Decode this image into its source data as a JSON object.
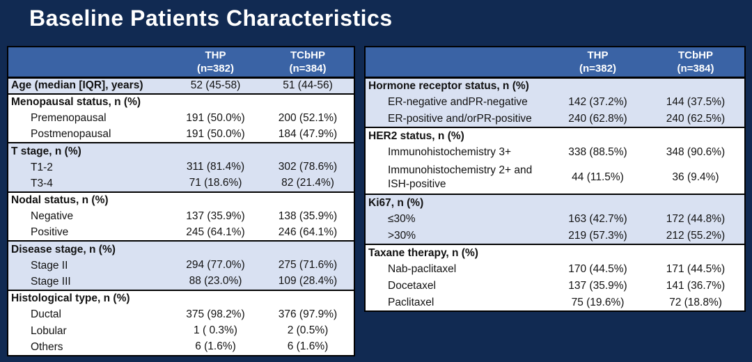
{
  "title": "Baseline Patients Characteristics",
  "colors": {
    "background": "#112a52",
    "table_header_bg": "#3a63a5",
    "table_header_text": "#ffffff",
    "stripe_row": "#d9e1f2",
    "white_row": "#ffffff",
    "border": "#000000",
    "cell_text": "#111111",
    "title_text": "#ffffff"
  },
  "tables": [
    {
      "id": "left",
      "name": "baseline-table-left",
      "columns": [
        {
          "title": "THP",
          "subtitle": "(n=382)"
        },
        {
          "title": "TCbHP",
          "subtitle": "(n=384)"
        }
      ],
      "sections": [
        {
          "shade": "stripe",
          "rows": [
            {
              "label": "Age (median [IQR], years)",
              "bold": true,
              "indent": false,
              "values": [
                "52 (45-58)",
                "51 (44-56)"
              ]
            }
          ]
        },
        {
          "shade": "white",
          "rows": [
            {
              "label": "Menopausal status, n (%)",
              "bold": true,
              "indent": false,
              "values": [
                "",
                ""
              ]
            },
            {
              "label": "Premenopausal",
              "bold": false,
              "indent": true,
              "values": [
                "191 (50.0%)",
                "200 (52.1%)"
              ]
            },
            {
              "label": "Postmenopausal",
              "bold": false,
              "indent": true,
              "values": [
                "191 (50.0%)",
                "184 (47.9%)"
              ]
            }
          ]
        },
        {
          "shade": "stripe",
          "rows": [
            {
              "label": "T stage, n (%)",
              "bold": true,
              "indent": false,
              "values": [
                "",
                ""
              ]
            },
            {
              "label": "T1-2",
              "bold": false,
              "indent": true,
              "values": [
                "311 (81.4%)",
                "302 (78.6%)"
              ]
            },
            {
              "label": "T3-4",
              "bold": false,
              "indent": true,
              "values": [
                "71 (18.6%)",
                "82 (21.4%)"
              ]
            }
          ]
        },
        {
          "shade": "white",
          "rows": [
            {
              "label": "Nodal status, n (%)",
              "bold": true,
              "indent": false,
              "values": [
                "",
                ""
              ]
            },
            {
              "label": "Negative",
              "bold": false,
              "indent": true,
              "values": [
                "137 (35.9%)",
                "138 (35.9%)"
              ]
            },
            {
              "label": "Positive",
              "bold": false,
              "indent": true,
              "values": [
                "245 (64.1%)",
                "246 (64.1%)"
              ]
            }
          ]
        },
        {
          "shade": "stripe",
          "rows": [
            {
              "label": "Disease stage, n (%)",
              "bold": true,
              "indent": false,
              "values": [
                "",
                ""
              ]
            },
            {
              "label": "Stage II",
              "bold": false,
              "indent": true,
              "values": [
                "294 (77.0%)",
                "275 (71.6%)"
              ]
            },
            {
              "label": "Stage III",
              "bold": false,
              "indent": true,
              "values": [
                "88 (23.0%)",
                "109 (28.4%)"
              ]
            }
          ]
        },
        {
          "shade": "white",
          "rows": [
            {
              "label": "Histological type, n (%)",
              "bold": true,
              "indent": false,
              "values": [
                "",
                ""
              ]
            },
            {
              "label": "Ductal",
              "bold": false,
              "indent": true,
              "values": [
                "375 (98.2%)",
                "376 (97.9%)"
              ]
            },
            {
              "label": "Lobular",
              "bold": false,
              "indent": true,
              "values": [
                "1 ( 0.3%)",
                "2 (0.5%)"
              ]
            },
            {
              "label": "Others",
              "bold": false,
              "indent": true,
              "values": [
                "6 (1.6%)",
                "6 (1.6%)"
              ]
            }
          ]
        }
      ]
    },
    {
      "id": "right",
      "name": "baseline-table-right",
      "columns": [
        {
          "title": "THP",
          "subtitle": "(n=382)"
        },
        {
          "title": "TCbHP",
          "subtitle": "(n=384)"
        }
      ],
      "sections": [
        {
          "shade": "stripe",
          "rows": [
            {
              "label": "Hormone receptor status, n (%)",
              "bold": true,
              "indent": false,
              "values": [
                "",
                ""
              ]
            },
            {
              "label": "ER-negative andPR-negative",
              "bold": false,
              "indent": true,
              "values": [
                "142 (37.2%)",
                "144 (37.5%)"
              ]
            },
            {
              "label": "ER-positive and/orPR-positive",
              "bold": false,
              "indent": true,
              "values": [
                "240 (62.8%)",
                "240 (62.5%)"
              ]
            }
          ]
        },
        {
          "shade": "white",
          "rows": [
            {
              "label": "HER2 status, n (%)",
              "bold": true,
              "indent": false,
              "values": [
                "",
                ""
              ]
            },
            {
              "label": "Immunohistochemistry 3+",
              "bold": false,
              "indent": true,
              "values": [
                "338 (88.5%)",
                "348 (90.6%)"
              ]
            },
            {
              "label": "Immunohistochemistry 2+ and ISH-positive",
              "bold": false,
              "indent": true,
              "tall": true,
              "values": [
                "44 (11.5%)",
                "36 (9.4%)"
              ]
            }
          ]
        },
        {
          "shade": "stripe",
          "rows": [
            {
              "label": "Ki67, n (%)",
              "bold": true,
              "indent": false,
              "values": [
                "",
                ""
              ]
            },
            {
              "label": "≤30%",
              "bold": false,
              "indent": true,
              "values": [
                "163 (42.7%)",
                "172 (44.8%)"
              ]
            },
            {
              "label": ">30%",
              "bold": false,
              "indent": true,
              "values": [
                "219 (57.3%)",
                "212 (55.2%)"
              ]
            }
          ]
        },
        {
          "shade": "white",
          "rows": [
            {
              "label": "Taxane therapy, n (%)",
              "bold": true,
              "indent": false,
              "values": [
                "",
                ""
              ]
            },
            {
              "label": "Nab-paclitaxel",
              "bold": false,
              "indent": true,
              "values": [
                "170 (44.5%)",
                "171 (44.5%)"
              ]
            },
            {
              "label": "Docetaxel",
              "bold": false,
              "indent": true,
              "values": [
                "137 (35.9%)",
                "141 (36.7%)"
              ]
            },
            {
              "label": "Paclitaxel",
              "bold": false,
              "indent": true,
              "values": [
                "75 (19.6%)",
                "72 (18.8%)"
              ]
            }
          ]
        }
      ]
    }
  ]
}
